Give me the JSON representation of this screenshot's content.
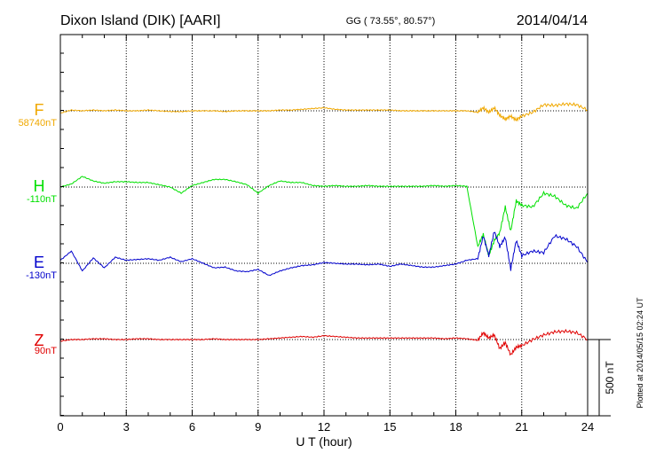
{
  "header": {
    "station": "Dixon Island (DIK)  [AARI]",
    "coords": "GG ( 73.55°,  80.57°)",
    "date": "2014/04/14"
  },
  "footer": {
    "plotted": "Plotted at 2014/05/15 02:24 UT"
  },
  "colors": {
    "F": "#f0a800",
    "H": "#00e000",
    "E": "#0000cc",
    "Z": "#e00000"
  },
  "chart_data": {
    "type": "line",
    "title": "",
    "xlabel": "U T (hour)",
    "ylabel": "",
    "xlim": [
      0,
      24
    ],
    "x_ticks": [
      "0",
      "3",
      "6",
      "9",
      "12",
      "15",
      "18",
      "21",
      "24"
    ],
    "grid": true,
    "scale_bar": {
      "label": "500 nT",
      "value_nT": 500
    },
    "x": [
      0,
      0.5,
      1,
      1.5,
      2,
      2.5,
      3,
      3.5,
      4,
      4.5,
      5,
      5.5,
      6,
      6.5,
      7,
      7.5,
      8,
      8.5,
      9,
      9.5,
      10,
      10.5,
      11,
      11.5,
      12,
      12.5,
      13,
      13.5,
      14,
      14.5,
      15,
      15.5,
      16,
      16.5,
      17,
      17.5,
      18,
      18.5,
      19,
      19.25,
      19.5,
      19.75,
      20,
      20.25,
      20.5,
      20.75,
      21,
      21.5,
      22,
      22.5,
      23,
      23.5,
      24
    ],
    "series": [
      {
        "name": "F",
        "baseline_label": "58740nT",
        "values": [
          -15,
          5,
          0,
          5,
          0,
          5,
          0,
          0,
          5,
          0,
          -5,
          -5,
          0,
          0,
          0,
          -5,
          0,
          0,
          0,
          0,
          5,
          5,
          10,
          15,
          20,
          10,
          5,
          5,
          5,
          5,
          5,
          0,
          0,
          0,
          0,
          0,
          0,
          0,
          -10,
          20,
          -10,
          20,
          -30,
          -55,
          -35,
          -60,
          -35,
          -10,
          40,
          35,
          45,
          40,
          5
        ]
      },
      {
        "name": "H",
        "baseline_label": "-110nT",
        "values": [
          0,
          20,
          70,
          40,
          25,
          35,
          35,
          30,
          30,
          15,
          0,
          -40,
          10,
          30,
          50,
          50,
          35,
          15,
          -40,
          10,
          40,
          30,
          30,
          10,
          5,
          10,
          5,
          5,
          10,
          5,
          5,
          5,
          5,
          5,
          10,
          5,
          10,
          5,
          -390,
          -310,
          -450,
          -350,
          -300,
          -130,
          -290,
          -90,
          -120,
          -130,
          -40,
          -60,
          -120,
          -140,
          -40
        ]
      },
      {
        "name": "E",
        "baseline_label": "-130nT",
        "values": [
          20,
          80,
          -50,
          35,
          -30,
          40,
          20,
          25,
          30,
          20,
          40,
          10,
          30,
          0,
          -30,
          -25,
          -50,
          -55,
          -40,
          -80,
          -50,
          -30,
          -15,
          -10,
          5,
          0,
          -5,
          -5,
          -10,
          -5,
          -20,
          -5,
          -15,
          -25,
          -25,
          -15,
          -5,
          20,
          30,
          180,
          50,
          210,
          110,
          170,
          -40,
          150,
          50,
          80,
          70,
          180,
          160,
          110,
          5
        ]
      },
      {
        "name": "Z",
        "baseline_label": "90nT",
        "values": [
          -10,
          0,
          0,
          5,
          5,
          0,
          0,
          5,
          5,
          0,
          0,
          0,
          0,
          0,
          5,
          0,
          0,
          0,
          0,
          5,
          10,
          15,
          20,
          15,
          25,
          20,
          15,
          10,
          10,
          10,
          10,
          10,
          10,
          10,
          10,
          5,
          10,
          5,
          -5,
          45,
          10,
          30,
          -60,
          -20,
          -100,
          -50,
          -40,
          0,
          30,
          50,
          55,
          45,
          0
        ]
      }
    ]
  }
}
